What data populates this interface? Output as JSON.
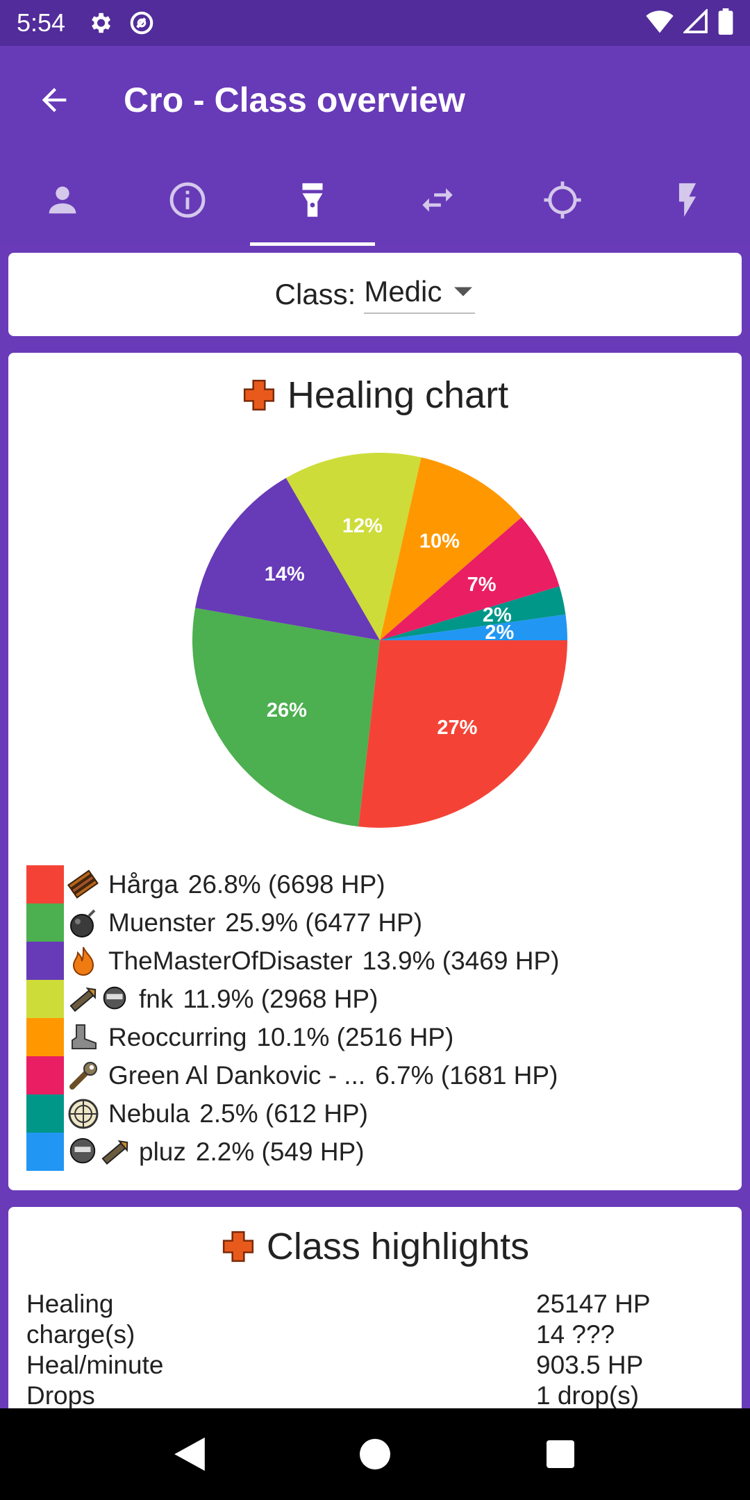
{
  "status_bar": {
    "time": "5:54"
  },
  "app_bar": {
    "title": "Cro - Class overview"
  },
  "tabs": [
    {
      "icon": "person-icon",
      "active": false
    },
    {
      "icon": "info-icon",
      "active": false
    },
    {
      "icon": "flashlight-icon",
      "active": true
    },
    {
      "icon": "swap-icon",
      "active": false
    },
    {
      "icon": "crosshair-icon",
      "active": false
    },
    {
      "icon": "lightning-icon",
      "active": false
    }
  ],
  "class_selector": {
    "label": "Class:",
    "value": "Medic"
  },
  "healing_chart": {
    "title": "Healing chart",
    "legend": [
      {
        "name": "Hårga",
        "value": "26.8% (6698 HP)",
        "icon": "explosive-icon"
      },
      {
        "name": "Muenster",
        "value": "25.9% (6477 HP)",
        "icon": "bomb-icon"
      },
      {
        "name": "TheMasterOfDisaster",
        "value": "13.9% (3469 HP)",
        "icon": "fire-icon"
      },
      {
        "name": "fnk",
        "value": "11.9% (2968 HP)",
        "icon": "rocket-icon"
      },
      {
        "name": "Reoccurring",
        "value": "10.1% (2516 HP)",
        "icon": "boot-icon"
      },
      {
        "name": "Green Al Dankovic - ...",
        "value": "6.7% (1681 HP)",
        "icon": "wrench-icon"
      },
      {
        "name": "Nebula",
        "value": "2.5% (612 HP)",
        "icon": "scope-icon"
      },
      {
        "name": "pluz",
        "value": "2.2% (549 HP)",
        "icon": "mask-icon"
      }
    ]
  },
  "chart_data": {
    "type": "pie",
    "categories": [
      "Hårga",
      "Muenster",
      "TheMasterOfDisaster",
      "fnk",
      "Reoccurring",
      "Green Al Dankovic - ...",
      "Nebula",
      "pluz"
    ],
    "values": [
      6698,
      6477,
      3469,
      2968,
      2516,
      1681,
      612,
      549
    ],
    "labels": [
      "27%",
      "26%",
      "14%",
      "12%",
      "10%",
      "7%",
      "2%",
      "2%"
    ],
    "colors": [
      "#f44336",
      "#4caf50",
      "#673ab7",
      "#cddc39",
      "#ff9800",
      "#e91e63",
      "#009688",
      "#2196f3"
    ]
  },
  "class_highlights": {
    "title": "Class highlights",
    "rows": [
      {
        "label": "Healing",
        "value": "25147 HP"
      },
      {
        "label": "charge(s)",
        "value": "14 ???"
      },
      {
        "label": "Heal/minute",
        "value": "903.5 HP"
      },
      {
        "label": "Drops",
        "value": "1 drop(s)"
      }
    ]
  }
}
